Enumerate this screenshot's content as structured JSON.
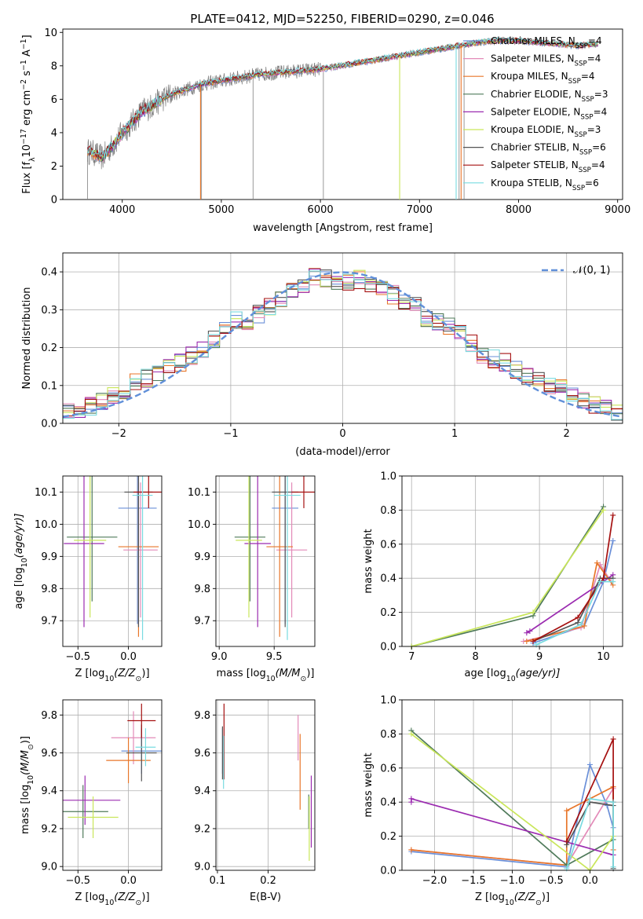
{
  "title": "PLATE=0412, MJD=52250, FIBERID=0290, z=0.046",
  "colors": {
    "Chabrier MILES": "#6a8fd8",
    "Salpeter MILES": "#e38ab8",
    "Kroupa MILES": "#e8762a",
    "Chabrier ELODIE": "#4f7a5a",
    "Salpeter ELODIE": "#9b2bb0",
    "Kroupa ELODIE": "#c9e65a",
    "Chabrier STELIB": "#555555",
    "Salpeter STELIB": "#a51010",
    "Kroupa STELIB": "#79dbe0",
    "data": "#808080",
    "gaussian": "#6190d9",
    "grid": "#b0b0b0"
  },
  "chart_data": [
    {
      "panel": "spectrum",
      "type": "line",
      "xlabel": "wavelength [Angstrom, rest frame]",
      "ylabel_main": "Flux [f",
      "ylabel_sub": "λ",
      "ylabel_mid": "10",
      "ylabel_sup1": "−17",
      "ylabel_mid2": " erg cm",
      "ylabel_sup2": "−2",
      "ylabel_mid3": " s",
      "ylabel_sup3": "−1",
      "ylabel_mid4": " A",
      "ylabel_sup4": "−1",
      "ylabel_end": "]",
      "xlim": [
        3400,
        9050
      ],
      "ylim": [
        0,
        10.2
      ],
      "xticks": [
        "4000",
        "5000",
        "6000",
        "7000",
        "8000",
        "9000"
      ],
      "xtick_values": [
        4000,
        5000,
        6000,
        7000,
        8000,
        9000
      ],
      "yticks": [
        "0",
        "2",
        "4",
        "6",
        "8",
        "10"
      ],
      "ytick_values": [
        0,
        2,
        4,
        6,
        8,
        10
      ],
      "continuum": {
        "wavelength": [
          3650,
          3700,
          3800,
          3900,
          4000,
          4100,
          4200,
          4300,
          4400,
          4500,
          4600,
          4800,
          5000,
          5200,
          5400,
          5600,
          5800,
          6000,
          6200,
          6400,
          6600,
          6800,
          7000,
          7200,
          7400,
          7600,
          7800,
          8000,
          8200,
          8400,
          8600,
          8800
        ],
        "flux": [
          2.9,
          2.8,
          2.5,
          3.2,
          4.0,
          4.6,
          5.3,
          5.6,
          6.0,
          6.3,
          6.5,
          6.9,
          7.1,
          7.3,
          7.5,
          7.6,
          7.7,
          7.8,
          8.0,
          8.2,
          8.4,
          8.6,
          8.8,
          9.0,
          9.2,
          9.4,
          9.5,
          9.5,
          9.4,
          9.3,
          9.2,
          9.3
        ]
      },
      "data_spikes_wavelength": [
        3650,
        4800,
        5320,
        6030,
        6800,
        7400,
        7450
      ],
      "legend": [
        {
          "pre": "Chabrier MILES, N",
          "sub": "SSP",
          "post": "=4"
        },
        {
          "pre": "Salpeter MILES, N",
          "sub": "SSP",
          "post": "=4"
        },
        {
          "pre": "Kroupa MILES, N",
          "sub": "SSP",
          "post": "=4"
        },
        {
          "pre": "Chabrier ELODIE, N",
          "sub": "SSP",
          "post": "=3"
        },
        {
          "pre": "Salpeter ELODIE, N",
          "sub": "SSP",
          "post": "=4"
        },
        {
          "pre": "Kroupa ELODIE, N",
          "sub": "SSP",
          "post": "=3"
        },
        {
          "pre": "Chabrier STELIB, N",
          "sub": "SSP",
          "post": "=6"
        },
        {
          "pre": "Salpeter STELIB, N",
          "sub": "SSP",
          "post": "=4"
        },
        {
          "pre": "Kroupa STELIB, N",
          "sub": "SSP",
          "post": "=6"
        }
      ]
    },
    {
      "panel": "residuals",
      "type": "line",
      "xlabel": "(data-model)/error",
      "ylabel": "Normed distribution",
      "xlim": [
        -2.5,
        2.5
      ],
      "ylim": [
        0,
        0.45
      ],
      "xticks": [
        "−2",
        "−1",
        "0",
        "1",
        "2"
      ],
      "xtick_values": [
        -2,
        -1,
        0,
        1,
        2
      ],
      "yticks": [
        "0.0",
        "0.1",
        "0.2",
        "0.3",
        "0.4"
      ],
      "ytick_values": [
        0,
        0.1,
        0.2,
        0.3,
        0.4
      ],
      "bin_width": 0.1,
      "legend_label": "𝒩(0, 1)",
      "hist_order": [
        "Chabrier MILES",
        "Salpeter MILES",
        "Kroupa MILES",
        "Chabrier ELODIE",
        "Salpeter ELODIE",
        "Kroupa ELODIE",
        "Chabrier STELIB",
        "Salpeter STELIB",
        "Kroupa STELIB"
      ],
      "hist_base_centers": [
        -2.45,
        -2.35,
        -2.25,
        -2.15,
        -2.05,
        -1.95,
        -1.85,
        -1.75,
        -1.65,
        -1.55,
        -1.45,
        -1.35,
        -1.25,
        -1.15,
        -1.05,
        -0.95,
        -0.85,
        -0.75,
        -0.65,
        -0.55,
        -0.45,
        -0.35,
        -0.25,
        -0.15,
        -0.05,
        0.05,
        0.15,
        0.25,
        0.35,
        0.45,
        0.55,
        0.65,
        0.75,
        0.85,
        0.95,
        1.05,
        1.15,
        1.25,
        1.35,
        1.45,
        1.55,
        1.65,
        1.75,
        1.85,
        1.95,
        2.05,
        2.15,
        2.25,
        2.35,
        2.45
      ],
      "hist_base_values": [
        0.035,
        0.04,
        0.045,
        0.06,
        0.07,
        0.09,
        0.11,
        0.12,
        0.13,
        0.15,
        0.16,
        0.18,
        0.19,
        0.22,
        0.26,
        0.27,
        0.27,
        0.29,
        0.31,
        0.33,
        0.35,
        0.37,
        0.39,
        0.38,
        0.37,
        0.37,
        0.38,
        0.36,
        0.35,
        0.34,
        0.32,
        0.31,
        0.28,
        0.27,
        0.26,
        0.24,
        0.21,
        0.18,
        0.17,
        0.16,
        0.14,
        0.12,
        0.11,
        0.1,
        0.09,
        0.07,
        0.06,
        0.05,
        0.04,
        0.03
      ]
    },
    {
      "panel": "age-vs-Z",
      "type": "scatter",
      "xlabel": "Z [log",
      "xlabel_sub": "10",
      "xlabel_post": "(Z/Z",
      "xlabel_sun": "⊙",
      "xlabel_end": ")]",
      "ylabel": "age  [log",
      "ylabel_sub": "10",
      "ylabel_post": "(age/yr)]",
      "xlim": [
        -0.65,
        0.33
      ],
      "ylim": [
        9.62,
        10.15
      ],
      "xticks": [
        "−0.5",
        "0.0"
      ],
      "xtick_values": [
        -0.5,
        0.0
      ],
      "yticks": [
        "9.7",
        "9.8",
        "9.9",
        "10.0",
        "10.1"
      ],
      "ytick_values": [
        9.7,
        9.8,
        9.9,
        10.0,
        10.1
      ],
      "points": [
        {
          "model": "Chabrier MILES",
          "x": 0.09,
          "xerr": 0.19,
          "y": 10.05,
          "yerr": 0.36
        },
        {
          "model": "Salpeter MILES",
          "x": 0.12,
          "xerr": 0.17,
          "y": 9.92,
          "yerr": 0.21
        },
        {
          "model": "Kroupa MILES",
          "x": 0.1,
          "xerr": 0.2,
          "y": 9.93,
          "yerr": 0.28
        },
        {
          "model": "Chabrier ELODIE",
          "x": -0.36,
          "xerr": 0.25,
          "y": 9.96,
          "yerr": 0.2
        },
        {
          "model": "Salpeter ELODIE",
          "x": -0.44,
          "xerr": 0.2,
          "y": 9.94,
          "yerr": 0.26
        },
        {
          "model": "Kroupa ELODIE",
          "x": -0.38,
          "xerr": 0.16,
          "y": 9.95,
          "yerr": 0.24
        },
        {
          "model": "Chabrier STELIB",
          "x": 0.1,
          "xerr": 0.14,
          "y": 10.1,
          "yerr": 0.42
        },
        {
          "model": "Salpeter STELIB",
          "x": 0.2,
          "xerr": 0.15,
          "y": 10.1,
          "yerr": 0.05
        },
        {
          "model": "Kroupa STELIB",
          "x": 0.14,
          "xerr": 0.1,
          "y": 10.09,
          "yerr": 0.45
        }
      ]
    },
    {
      "panel": "age-vs-mass",
      "type": "scatter",
      "xlabel": "mass [log",
      "xlabel_sub": "10",
      "xlabel_post": "(M/M",
      "xlabel_sun": "⊙",
      "xlabel_end": ")]",
      "xlim": [
        8.97,
        9.87
      ],
      "ylim": [
        9.62,
        10.15
      ],
      "xticks": [
        "9.0",
        "9.5"
      ],
      "xtick_values": [
        9.0,
        9.5
      ],
      "yticks": [
        "9.7",
        "9.8",
        "9.9",
        "10.0",
        "10.1"
      ],
      "ytick_values": [
        9.7,
        9.8,
        9.9,
        10.0,
        10.1
      ],
      "points": [
        {
          "model": "Chabrier MILES",
          "x": 9.6,
          "xerr": 0.12,
          "y": 10.05,
          "yerr": 0.36
        },
        {
          "model": "Salpeter MILES",
          "x": 9.66,
          "xerr": 0.14,
          "y": 9.92,
          "yerr": 0.21
        },
        {
          "model": "Kroupa MILES",
          "x": 9.55,
          "xerr": 0.12,
          "y": 9.93,
          "yerr": 0.28
        },
        {
          "model": "Chabrier ELODIE",
          "x": 9.28,
          "xerr": 0.14,
          "y": 9.96,
          "yerr": 0.2
        },
        {
          "model": "Salpeter ELODIE",
          "x": 9.35,
          "xerr": 0.12,
          "y": 9.94,
          "yerr": 0.26
        },
        {
          "model": "Kroupa ELODIE",
          "x": 9.27,
          "xerr": 0.12,
          "y": 9.95,
          "yerr": 0.24
        },
        {
          "model": "Chabrier STELIB",
          "x": 9.6,
          "xerr": 0.12,
          "y": 10.1,
          "yerr": 0.42
        },
        {
          "model": "Salpeter STELIB",
          "x": 9.77,
          "xerr": 0.11,
          "y": 10.1,
          "yerr": 0.05
        },
        {
          "model": "Kroupa STELIB",
          "x": 9.62,
          "xerr": 0.12,
          "y": 10.09,
          "yerr": 0.45
        }
      ]
    },
    {
      "panel": "mass-weight-vs-age",
      "type": "line",
      "xlabel": "age  [log",
      "xlabel_sub": "10",
      "xlabel_post": "(age/yr)]",
      "ylabel": "mass weight",
      "xlim": [
        6.85,
        10.3
      ],
      "ylim": [
        0,
        1
      ],
      "xticks": [
        "7",
        "8",
        "9",
        "10"
      ],
      "xtick_values": [
        7,
        8,
        9,
        10
      ],
      "yticks": [
        "0.0",
        "0.2",
        "0.4",
        "0.6",
        "0.8",
        "1.0"
      ],
      "ytick_values": [
        0,
        0.2,
        0.4,
        0.6,
        0.8,
        1.0
      ],
      "series": [
        {
          "model": "Chabrier MILES",
          "x": [
            8.9,
            9.7,
            10.0,
            10.15
          ],
          "y": [
            0.02,
            0.12,
            0.38,
            0.62
          ]
        },
        {
          "model": "Salpeter MILES",
          "x": [
            8.75,
            9.65,
            9.95,
            10.12
          ],
          "y": [
            0.03,
            0.11,
            0.48,
            0.38
          ]
        },
        {
          "model": "Kroupa MILES",
          "x": [
            8.8,
            9.7,
            9.9,
            10.15
          ],
          "y": [
            0.03,
            0.12,
            0.49,
            0.36
          ]
        },
        {
          "model": "Chabrier ELODIE",
          "x": [
            7.0,
            8.9,
            10.0
          ],
          "y": [
            0.0,
            0.18,
            0.82
          ]
        },
        {
          "model": "Salpeter ELODIE",
          "x": [
            8.8,
            8.85,
            10.15
          ],
          "y": [
            0.08,
            0.09,
            0.42
          ]
        },
        {
          "model": "Kroupa ELODIE",
          "x": [
            7.0,
            8.9,
            10.0
          ],
          "y": [
            0.0,
            0.2,
            0.8
          ]
        },
        {
          "model": "Chabrier STELIB",
          "x": [
            8.9,
            9.6,
            9.95,
            10.15
          ],
          "y": [
            0.03,
            0.14,
            0.4,
            0.4
          ]
        },
        {
          "model": "Salpeter STELIB",
          "x": [
            8.9,
            9.6,
            10.0,
            10.15
          ],
          "y": [
            0.03,
            0.17,
            0.4,
            0.77
          ]
        },
        {
          "model": "Kroupa STELIB",
          "x": [
            8.95,
            9.65,
            9.95,
            10.15
          ],
          "y": [
            0.01,
            0.13,
            0.38,
            0.38
          ]
        }
      ]
    },
    {
      "panel": "mass-vs-Z",
      "type": "scatter",
      "xlabel": "Z [log",
      "xlabel_sub": "10",
      "xlabel_post": "(Z/Z",
      "xlabel_sun": "⊙",
      "xlabel_end": ")]",
      "ylabel": "mass [log",
      "ylabel_sub": "10",
      "ylabel_post": "(M/M",
      "ylabel_sun": "⊙",
      "ylabel_end": ")]",
      "xlim": [
        -0.65,
        0.33
      ],
      "ylim": [
        8.98,
        9.88
      ],
      "xticks": [
        "−0.5",
        "0.0"
      ],
      "xtick_values": [
        -0.5,
        0.0
      ],
      "yticks": [
        "9.0",
        "9.2",
        "9.4",
        "9.6",
        "9.8"
      ],
      "ytick_values": [
        9.0,
        9.2,
        9.4,
        9.6,
        9.8
      ],
      "points": [
        {
          "model": "Chabrier MILES",
          "x": 0.13,
          "xerr": 0.2,
          "y": 9.61,
          "yerr": 0.12
        },
        {
          "model": "Salpeter MILES",
          "x": 0.05,
          "xerr": 0.22,
          "y": 9.68,
          "yerr": 0.14
        },
        {
          "model": "Kroupa MILES",
          "x": 0.0,
          "xerr": 0.22,
          "y": 9.56,
          "yerr": 0.12
        },
        {
          "model": "Chabrier ELODIE",
          "x": -0.45,
          "xerr": 0.25,
          "y": 9.29,
          "yerr": 0.14
        },
        {
          "model": "Salpeter ELODIE",
          "x": -0.43,
          "xerr": 0.35,
          "y": 9.35,
          "yerr": 0.13
        },
        {
          "model": "Kroupa ELODIE",
          "x": -0.35,
          "xerr": 0.25,
          "y": 9.26,
          "yerr": 0.11
        },
        {
          "model": "Chabrier STELIB",
          "x": 0.13,
          "xerr": 0.15,
          "y": 9.6,
          "yerr": 0.15
        },
        {
          "model": "Salpeter STELIB",
          "x": 0.13,
          "xerr": 0.14,
          "y": 9.77,
          "yerr": 0.09
        },
        {
          "model": "Kroupa STELIB",
          "x": 0.17,
          "xerr": 0.1,
          "y": 9.63,
          "yerr": 0.1
        }
      ]
    },
    {
      "panel": "mass-vs-EBV",
      "type": "scatter",
      "xlabel": "E(B-V)",
      "xlim": [
        0.097,
        0.292
      ],
      "ylim": [
        8.98,
        9.88
      ],
      "xticks": [
        "0.1",
        "0.2"
      ],
      "xtick_values": [
        0.1,
        0.2
      ],
      "yticks": [
        "9.0",
        "9.2",
        "9.4",
        "9.6",
        "9.8"
      ],
      "ytick_values": [
        9.0,
        9.2,
        9.4,
        9.6,
        9.8
      ],
      "points": [
        {
          "model": "Chabrier MILES",
          "x": 0.11,
          "y": 9.61,
          "yerr": 0.12
        },
        {
          "model": "Salpeter MILES",
          "x": 0.259,
          "y": 9.68,
          "yerr": 0.12
        },
        {
          "model": "Kroupa MILES",
          "x": 0.263,
          "y": 9.5,
          "yerr": 0.2
        },
        {
          "model": "Chabrier ELODIE",
          "x": 0.28,
          "y": 9.29,
          "yerr": 0.09
        },
        {
          "model": "Salpeter ELODIE",
          "x": 0.285,
          "y": 9.29,
          "yerr": 0.19
        },
        {
          "model": "Kroupa ELODIE",
          "x": 0.281,
          "y": 9.2,
          "yerr": 0.17
        },
        {
          "model": "Chabrier STELIB",
          "x": 0.11,
          "y": 9.6,
          "yerr": 0.14
        },
        {
          "model": "Salpeter STELIB",
          "x": 0.113,
          "y": 9.66,
          "yerr": 0.2
        },
        {
          "model": "Kroupa STELIB",
          "x": 0.112,
          "y": 9.55,
          "yerr": 0.14
        }
      ]
    },
    {
      "panel": "mass-weight-vs-Z",
      "type": "line",
      "xlabel": "Z [log",
      "xlabel_sub": "10",
      "xlabel_post": "(Z/Z",
      "xlabel_sun": "⊙",
      "xlabel_end": ")]",
      "ylabel": "mass weight",
      "xlim": [
        -2.42,
        0.42
      ],
      "ylim": [
        0,
        1
      ],
      "xticks": [
        "−2.0",
        "−1.5",
        "−1.0",
        "−0.5",
        "0.0"
      ],
      "xtick_values": [
        -2.0,
        -1.5,
        -1.0,
        -0.5,
        0.0
      ],
      "yticks": [
        "0.0",
        "0.2",
        "0.4",
        "0.6",
        "0.8",
        "1.0"
      ],
      "ytick_values": [
        0,
        0.2,
        0.4,
        0.6,
        0.8,
        1.0
      ],
      "series": [
        {
          "model": "Chabrier MILES",
          "x": [
            -2.3,
            -0.3,
            0.0,
            0.22,
            0.3
          ],
          "y": [
            0.11,
            0.02,
            0.62,
            0.38,
            0.25
          ]
        },
        {
          "model": "Salpeter MILES",
          "x": [
            -2.3,
            -0.3,
            0.3
          ],
          "y": [
            0.12,
            0.03,
            0.48
          ]
        },
        {
          "model": "Kroupa MILES",
          "x": [
            -2.3,
            -0.3,
            -0.3,
            0.3,
            0.3
          ],
          "y": [
            0.12,
            0.03,
            0.35,
            0.49,
            0.12
          ]
        },
        {
          "model": "Chabrier ELODIE",
          "x": [
            -2.3,
            -0.3,
            0.3
          ],
          "y": [
            0.82,
            0.03,
            0.18
          ]
        },
        {
          "model": "Salpeter ELODIE",
          "x": [
            -2.3,
            -2.3,
            0.3
          ],
          "y": [
            0.4,
            0.42,
            0.09
          ]
        },
        {
          "model": "Kroupa ELODIE",
          "x": [
            -2.3,
            0.0,
            0.3
          ],
          "y": [
            0.8,
            0.0,
            0.2
          ]
        },
        {
          "model": "Chabrier STELIB",
          "x": [
            -0.3,
            0.0,
            0.3,
            0.3
          ],
          "y": [
            0.15,
            0.4,
            0.38,
            0.01
          ]
        },
        {
          "model": "Salpeter STELIB",
          "x": [
            -0.3,
            0.3,
            0.3
          ],
          "y": [
            0.17,
            0.77,
            0.4
          ]
        },
        {
          "model": "Kroupa STELIB",
          "x": [
            -0.3,
            0.0,
            0.3,
            0.3
          ],
          "y": [
            0.01,
            0.42,
            0.4,
            0.02
          ]
        }
      ]
    }
  ]
}
